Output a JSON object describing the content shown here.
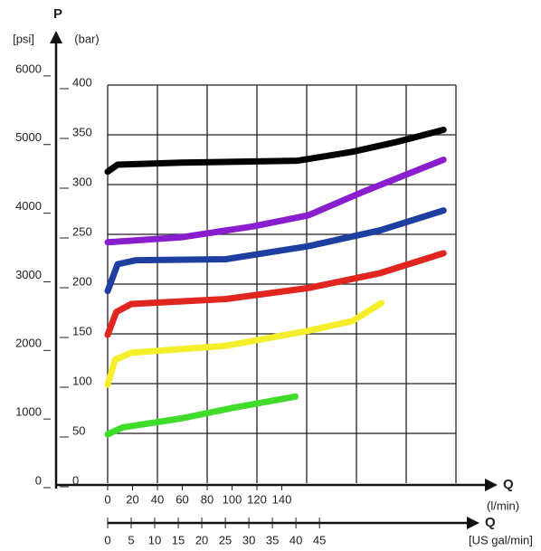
{
  "chart_data": {
    "type": "line",
    "y_label": "P",
    "y_unit": "(bar)",
    "y2_unit": "[psi]",
    "x_label": "Q",
    "x_unit": "(l/min)",
    "x2_label": "Q",
    "x2_unit": "[US gal/min]",
    "xlim": [
      0,
      280
    ],
    "xticks": [
      0,
      20,
      40,
      60,
      80,
      100,
      120,
      140
    ],
    "xgrid": [
      0,
      40,
      80,
      120,
      160,
      200,
      240,
      280
    ],
    "x2lim": [
      0,
      74
    ],
    "x2ticks": [
      0,
      5,
      10,
      15,
      20,
      25,
      30,
      35,
      40,
      45
    ],
    "ylim": [
      0,
      400
    ],
    "yticks": [
      0,
      50,
      100,
      150,
      200,
      250,
      300,
      350,
      400
    ],
    "y2lim": [
      0,
      5801
    ],
    "y2ticks": [
      0,
      1000,
      2000,
      3000,
      4000,
      5000,
      6000
    ],
    "grid": true,
    "series": [
      {
        "color": "#000000",
        "x": [
          0,
          8,
          59,
          153,
          197,
          233,
          270
        ],
        "values": [
          313,
          320,
          322,
          324,
          333,
          343,
          355
        ]
      },
      {
        "color": "#8a1ecf",
        "x": [
          0,
          59,
          117,
          161,
          204,
          270
        ],
        "values": [
          242,
          247,
          258,
          269,
          292,
          325
        ]
      },
      {
        "color": "#1e3fa0",
        "x": [
          0,
          8,
          23,
          95,
          161,
          219,
          270
        ],
        "values": [
          193,
          220,
          224,
          225,
          238,
          254,
          274
        ]
      },
      {
        "color": "#e0261e",
        "x": [
          0,
          7,
          19,
          95,
          161,
          219,
          270
        ],
        "values": [
          149,
          172,
          180,
          185,
          196,
          211,
          231
        ]
      },
      {
        "color": "#f5ee2a",
        "x": [
          0,
          6,
          19,
          95,
          161,
          197,
          220
        ],
        "values": [
          99,
          124,
          131,
          138,
          153,
          163,
          181
        ]
      },
      {
        "color": "#3fdc2a",
        "x": [
          0,
          12,
          59,
          102,
          151
        ],
        "values": [
          49,
          56,
          65,
          76,
          87
        ]
      }
    ]
  }
}
